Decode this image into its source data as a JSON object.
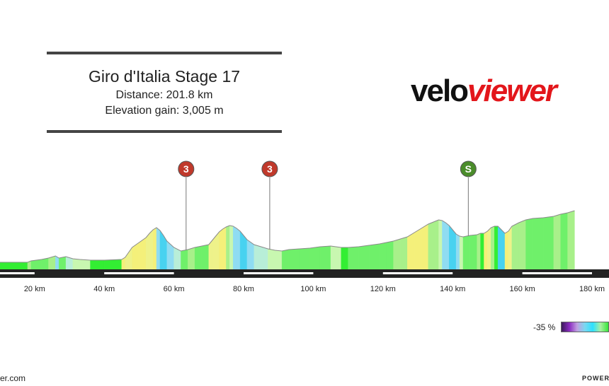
{
  "header": {
    "title": "Giro d'Italia Stage 17",
    "distance": "Distance: 201.8 km",
    "elevation": "Elevation gain: 3,005 m"
  },
  "logo": {
    "part1": "velo",
    "part2": "viewer"
  },
  "footer": {
    "left": "er.com",
    "right": "POWER"
  },
  "legend": {
    "label": "-35 %"
  },
  "colors": {
    "red_climb": "#c0392b",
    "sprint": "#4a8c2a",
    "axis": "#222222"
  },
  "chart_data": {
    "type": "area",
    "xlabel": "",
    "ylabel": "",
    "x_tick_labels": [
      "20 km",
      "40 km",
      "60 km",
      "80 km",
      "100 km",
      "120 km",
      "140 km",
      "160 km",
      "180 km"
    ],
    "x_ticks": [
      20,
      40,
      60,
      80,
      100,
      120,
      140,
      160,
      180
    ],
    "xlim": [
      0,
      175
    ],
    "markers": [
      {
        "label": "3",
        "km": 63.5,
        "kind": "climb"
      },
      {
        "label": "3",
        "km": 87.5,
        "kind": "climb"
      },
      {
        "label": "S",
        "km": 144.5,
        "kind": "sprint"
      }
    ],
    "profile": [
      [
        0,
        12
      ],
      [
        18,
        12
      ],
      [
        19,
        14
      ],
      [
        22,
        16
      ],
      [
        24,
        18
      ],
      [
        26,
        21
      ],
      [
        27,
        18
      ],
      [
        29,
        20
      ],
      [
        31,
        17
      ],
      [
        33,
        16
      ],
      [
        36,
        15
      ],
      [
        40,
        15
      ],
      [
        45,
        16
      ],
      [
        46,
        19
      ],
      [
        47,
        26
      ],
      [
        48,
        33
      ],
      [
        50,
        40
      ],
      [
        52,
        47
      ],
      [
        53,
        53
      ],
      [
        54,
        58
      ],
      [
        55,
        61
      ],
      [
        56,
        57
      ],
      [
        57,
        50
      ],
      [
        58,
        42
      ],
      [
        60,
        33
      ],
      [
        62,
        28
      ],
      [
        64,
        30
      ],
      [
        66,
        33
      ],
      [
        68,
        35
      ],
      [
        70,
        37
      ],
      [
        71,
        43
      ],
      [
        72,
        49
      ],
      [
        73,
        55
      ],
      [
        74,
        59
      ],
      [
        75,
        62
      ],
      [
        76,
        64
      ],
      [
        77,
        63
      ],
      [
        78,
        60
      ],
      [
        79,
        56
      ],
      [
        80,
        50
      ],
      [
        81,
        44
      ],
      [
        83,
        37
      ],
      [
        85,
        34
      ],
      [
        87,
        31
      ],
      [
        89,
        29
      ],
      [
        91,
        28
      ],
      [
        93,
        30
      ],
      [
        96,
        31
      ],
      [
        99,
        32
      ],
      [
        102,
        34
      ],
      [
        105,
        35
      ],
      [
        108,
        33
      ],
      [
        110,
        33
      ],
      [
        113,
        34
      ],
      [
        116,
        36
      ],
      [
        119,
        38
      ],
      [
        121,
        40
      ],
      [
        123,
        42
      ],
      [
        125,
        45
      ],
      [
        127,
        48
      ],
      [
        129,
        54
      ],
      [
        131,
        60
      ],
      [
        133,
        66
      ],
      [
        135,
        70
      ],
      [
        136,
        72
      ],
      [
        137,
        71
      ],
      [
        138,
        68
      ],
      [
        139,
        64
      ],
      [
        140,
        58
      ],
      [
        141,
        52
      ],
      [
        142,
        49
      ],
      [
        143,
        48
      ],
      [
        145,
        50
      ],
      [
        147,
        51
      ],
      [
        148,
        53
      ],
      [
        149,
        53
      ],
      [
        150,
        56
      ],
      [
        151,
        61
      ],
      [
        152,
        63
      ],
      [
        153,
        63
      ],
      [
        154,
        58
      ],
      [
        155,
        53
      ],
      [
        156,
        56
      ],
      [
        157,
        63
      ],
      [
        159,
        68
      ],
      [
        161,
        72
      ],
      [
        163,
        74
      ],
      [
        166,
        75
      ],
      [
        169,
        77
      ],
      [
        171,
        80
      ],
      [
        173,
        82
      ],
      [
        175,
        85
      ]
    ]
  }
}
